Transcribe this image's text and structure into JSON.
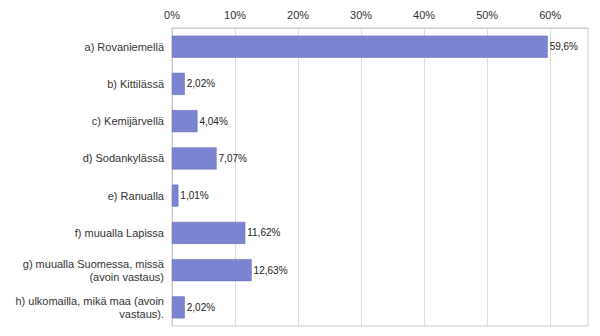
{
  "chart_data": {
    "type": "bar",
    "orientation": "horizontal",
    "categories": [
      "a) Rovaniemellä",
      "b) Kittilässä",
      "c) Kemijärvellä",
      "d) Sodankylässä",
      "e) Ranualla",
      "f) muualla Lapissa",
      "g) muualla Suomessa, missä\n(avoin vastaus)",
      "h) ulkomailla, mikä maa (avoin\nvastaus)."
    ],
    "values": [
      59.6,
      2.02,
      4.04,
      7.07,
      1.01,
      11.62,
      12.63,
      2.02
    ],
    "value_labels": [
      "59,6%",
      "2,02%",
      "4,04%",
      "7,07%",
      "1,01%",
      "11,62%",
      "12,63%",
      "2,02%"
    ],
    "color": "#7b84d0",
    "xlim": [
      0,
      66
    ],
    "xticks": [
      {
        "value": 0,
        "label": "0%"
      },
      {
        "value": 10,
        "label": "10%"
      },
      {
        "value": 20,
        "label": "20%"
      },
      {
        "value": 30,
        "label": "30%"
      },
      {
        "value": 40,
        "label": "40%"
      },
      {
        "value": 50,
        "label": "50%"
      },
      {
        "value": 60,
        "label": "60%"
      }
    ],
    "grid": true,
    "data_labels": true
  }
}
